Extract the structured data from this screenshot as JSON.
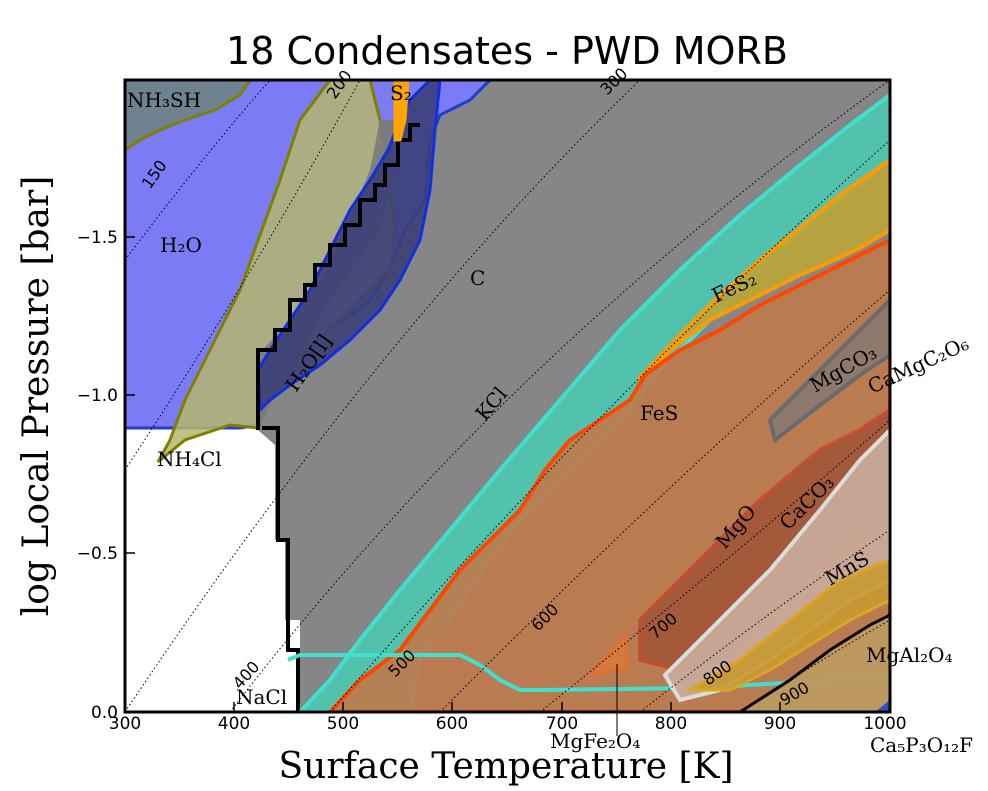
{
  "chart_data": {
    "type": "area",
    "title": "18 Condensates - PWD MORB",
    "xlabel": "Surface Temperature [K]",
    "ylabel": "log Local Pressure [bar]",
    "xlim": [
      300,
      1000
    ],
    "ylim": [
      0.0,
      -2.0
    ],
    "y_axis_inverted": true,
    "grid": false,
    "x_ticks": [
      "300",
      "400",
      "500",
      "600",
      "700",
      "800",
      "900",
      "1000"
    ],
    "y_ticks": [
      "0.0",
      "−0.5",
      "−1.0",
      "−1.5"
    ],
    "isotherms": [
      "150",
      "200",
      "300",
      "400",
      "500",
      "600",
      "700",
      "800",
      "900"
    ],
    "regions": [
      {
        "name": "NH3SH",
        "display": "NH₃SH",
        "color": "#708090"
      },
      {
        "name": "H2O",
        "display": "H₂O",
        "color": "#7b7bf5"
      },
      {
        "name": "NH4Cl",
        "display": "NH₄Cl",
        "color": "#b6b66e"
      },
      {
        "name": "S2",
        "display": "S₂",
        "color": "#ffa500"
      },
      {
        "name": "H2O[l]",
        "display": "H₂O[l]",
        "color": "#3b3f78"
      },
      {
        "name": "C",
        "display": "C",
        "color": "#808080"
      },
      {
        "name": "KCl",
        "display": "KCl",
        "color": "#4ec9b0"
      },
      {
        "name": "FeS2",
        "display": "FeS₂",
        "color": "#b8a43c"
      },
      {
        "name": "FeS",
        "display": "FeS",
        "color": "#c07a4a"
      },
      {
        "name": "MgCO3",
        "display": "MgCO₃",
        "color": "#8a7a6e"
      },
      {
        "name": "CaMgC2O6",
        "display": "CaMgC₂O₆",
        "color": "#a39590"
      },
      {
        "name": "MgO",
        "display": "MgO",
        "color": "#a0583a"
      },
      {
        "name": "CaCO3",
        "display": "CaCO₃",
        "color": "#c9aa9a"
      },
      {
        "name": "MnS",
        "display": "MnS",
        "color": "#c89a30"
      },
      {
        "name": "MgAl2O4",
        "display": "MgAl₂O₄",
        "color": "#bc9a60"
      },
      {
        "name": "MgFe2O4",
        "display": "MgFe₂O₄",
        "color": "#d87a3a"
      },
      {
        "name": "NaCl",
        "display": "NaCl",
        "color": "#5fae9e"
      },
      {
        "name": "Ca5P3O12F",
        "display": "Ca₅P₃O₁₂F",
        "color": "#3050c0"
      }
    ],
    "boundaries": {
      "NH3SH": [
        [
          300,
          -1.78
        ],
        [
          310,
          -1.8
        ],
        [
          330,
          -1.85
        ],
        [
          350,
          -1.92
        ],
        [
          365,
          -2.0
        ]
      ],
      "H2O": [
        [
          300,
          -0.9
        ],
        [
          440,
          -0.9
        ],
        [
          460,
          -1.2
        ],
        [
          500,
          -1.5
        ],
        [
          560,
          -2.0
        ]
      ],
      "KCl": [
        [
          455,
          0.0
        ],
        [
          520,
          -0.25
        ],
        [
          600,
          -0.55
        ],
        [
          700,
          -0.9
        ],
        [
          800,
          -1.25
        ],
        [
          900,
          -1.6
        ],
        [
          1000,
          -1.98
        ]
      ],
      "FeS": [
        [
          480,
          0.0
        ],
        [
          580,
          -0.3
        ],
        [
          680,
          -0.65
        ],
        [
          770,
          -1.05
        ],
        [
          900,
          -1.35
        ],
        [
          1000,
          -1.52
        ]
      ],
      "FeS2": [
        [
          770,
          -1.05
        ],
        [
          850,
          -1.38
        ],
        [
          1000,
          -1.9
        ]
      ]
    }
  },
  "labels": {
    "nh3sh": "NH₃SH",
    "h2o": "H₂O",
    "nh4cl": "NH₄Cl",
    "s2": "S₂",
    "h2ol": "H₂O[l]",
    "c": "C",
    "kcl": "KCl",
    "fes2": "FeS₂",
    "fes": "FeS",
    "mgco3": "MgCO₃",
    "camgc2o6": "CaMgC₂O₆",
    "mgo": "MgO",
    "caco3": "CaCO₃",
    "mns": "MnS",
    "mgal2o4": "MgAl₂O₄",
    "nacl": "NaCl",
    "mgfe2o4": "MgFe₂O₄",
    "ca5p3o12f": "Ca₅P₃O₁₂F"
  }
}
